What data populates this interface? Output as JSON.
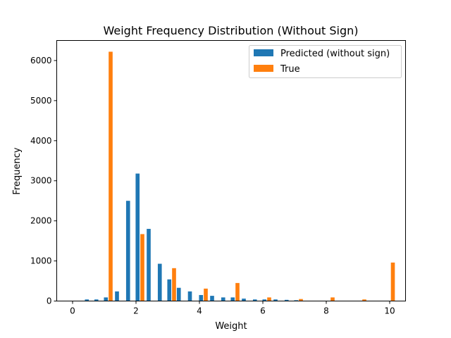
{
  "chart_data": {
    "type": "bar",
    "title": "Weight Frequency Distribution (Without Sign)",
    "xlabel": "Weight",
    "ylabel": "Frequency",
    "xlim": [
      -0.5,
      10.5
    ],
    "ylim": [
      0,
      6500
    ],
    "xticks": [
      0,
      2,
      4,
      6,
      8,
      10
    ],
    "yticks": [
      0,
      1000,
      2000,
      3000,
      4000,
      5000,
      6000
    ],
    "bar_width": 0.125,
    "legend_position": "top-right",
    "grid": false,
    "series": [
      {
        "name": "Predicted (without sign)",
        "color": "#1f77b4",
        "x": [
          0.45,
          0.75,
          1.05,
          1.4,
          1.75,
          2.05,
          2.4,
          2.75,
          3.05,
          3.35,
          3.7,
          4.05,
          4.4,
          4.75,
          5.05,
          5.4,
          5.75,
          6.05,
          6.4,
          6.75,
          7.05
        ],
        "values": [
          40,
          40,
          90,
          240,
          2500,
          3180,
          1800,
          930,
          540,
          330,
          240,
          150,
          130,
          90,
          90,
          60,
          40,
          40,
          40,
          30,
          20
        ]
      },
      {
        "name": "True",
        "color": "#ff7f0e",
        "x": [
          1.2,
          2.2,
          3.2,
          4.2,
          5.2,
          6.2,
          7.2,
          8.2,
          9.2,
          10.1
        ],
        "values": [
          6220,
          1670,
          820,
          310,
          450,
          90,
          50,
          90,
          40,
          960
        ]
      }
    ]
  }
}
